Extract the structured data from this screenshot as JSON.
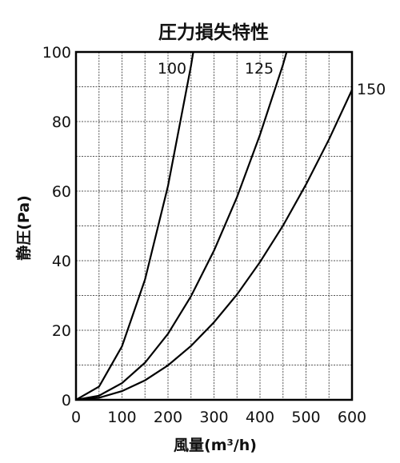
{
  "chart_data": {
    "type": "line",
    "title": "圧力損失特性",
    "xlabel": "風量(m³/h)",
    "ylabel": "静圧(Pa)",
    "xlim": [
      0,
      600
    ],
    "ylim": [
      0,
      100
    ],
    "x_ticks": [
      "0",
      "100",
      "200",
      "300",
      "400",
      "500",
      "600"
    ],
    "y_ticks": [
      "0",
      "20",
      "40",
      "60",
      "80",
      "100"
    ],
    "grid": true,
    "series": [
      {
        "name": "100",
        "x": [
          0,
          50,
          100,
          150,
          200,
          250,
          255
        ],
        "y": [
          0,
          3.8,
          15.4,
          34.6,
          61.5,
          96.1,
          100
        ]
      },
      {
        "name": "125",
        "x": [
          0,
          50,
          100,
          150,
          200,
          250,
          300,
          350,
          400,
          450,
          458
        ],
        "y": [
          0,
          1.2,
          4.8,
          10.7,
          19.0,
          29.8,
          42.9,
          58.3,
          76.2,
          96.4,
          100
        ]
      },
      {
        "name": "150",
        "x": [
          0,
          50,
          100,
          150,
          200,
          250,
          300,
          350,
          400,
          450,
          500,
          550,
          600
        ],
        "y": [
          0,
          0.6,
          2.5,
          5.6,
          9.9,
          15.5,
          22.3,
          30.3,
          39.6,
          50.1,
          61.9,
          74.9,
          89.1
        ]
      }
    ]
  }
}
